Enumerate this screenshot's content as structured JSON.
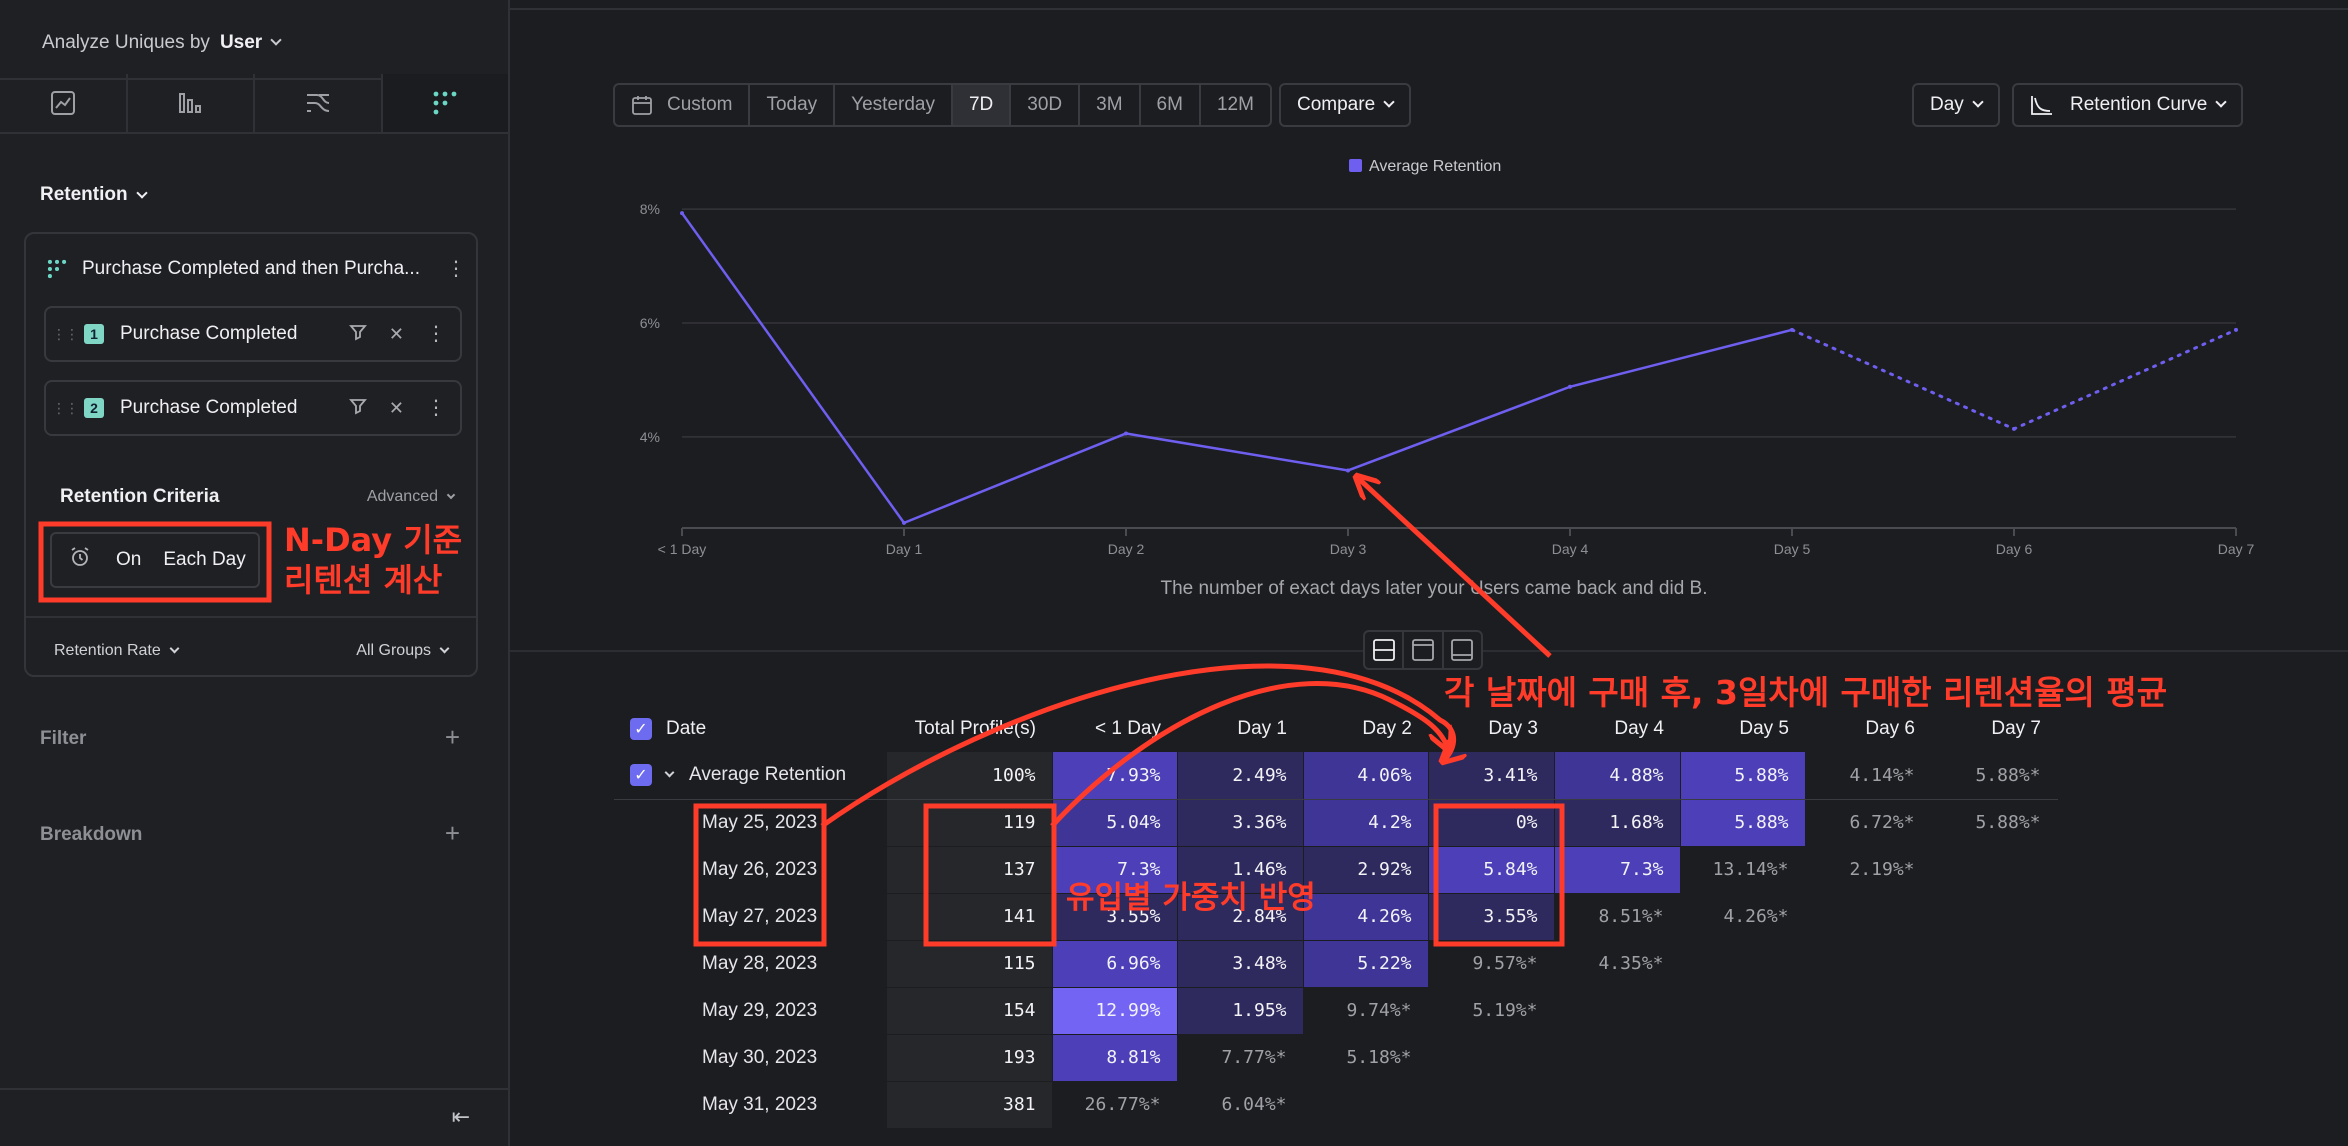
{
  "sidebar": {
    "analyze_label": "Analyze Uniques by",
    "analyze_value": "User",
    "tabs": [
      {
        "name": "insights-tab",
        "icon": "line-chart-icon"
      },
      {
        "name": "funnels-tab",
        "icon": "bar-chart-icon"
      },
      {
        "name": "flows-tab",
        "icon": "flows-icon"
      },
      {
        "name": "retention-tab",
        "icon": "retention-grid-icon"
      }
    ],
    "section_title": "Retention",
    "metric_title": "Purchase Completed and then Purcha...",
    "steps": [
      {
        "num": "1",
        "label": "Purchase Completed"
      },
      {
        "num": "2",
        "label": "Purchase Completed"
      }
    ],
    "criteria_title": "Retention Criteria",
    "criteria_advanced": "Advanced",
    "criteria_on": "On",
    "criteria_each": "Each Day",
    "rate_label": "Retention Rate",
    "groups_label": "All Groups",
    "filter_label": "Filter",
    "breakdown_label": "Breakdown"
  },
  "toolbar": {
    "custom_label": "Custom",
    "ranges": [
      "Today",
      "Yesterday",
      "7D",
      "30D",
      "3M",
      "6M",
      "12M"
    ],
    "active_range": "7D",
    "compare_label": "Compare",
    "unit_label": "Day",
    "chart_type_label": "Retention Curve"
  },
  "chart_data": {
    "type": "line",
    "legend": [
      "Average Retention"
    ],
    "legend_placement": "top-center",
    "categories": [
      "< 1 Day",
      "Day 1",
      "Day 2",
      "Day 3",
      "Day 4",
      "Day 5",
      "Day 6",
      "Day 7"
    ],
    "series": [
      {
        "name": "Average Retention",
        "values": [
          7.93,
          2.49,
          4.06,
          3.41,
          4.88,
          5.88,
          4.14,
          5.88
        ],
        "incomplete_from_index": 5
      }
    ],
    "y_ticks": [
      "8%",
      "6%",
      "4%"
    ],
    "y_tick_values": [
      8,
      6,
      4
    ],
    "ylim": [
      2.4,
      8.3
    ],
    "grid": true,
    "xlabel": "The number of exact days later your Users came back and did B.",
    "color": "#6f5ff0"
  },
  "table": {
    "headers": [
      "Date",
      "Total Profile(s)",
      "< 1 Day",
      "Day 1",
      "Day 2",
      "Day 3",
      "Day 4",
      "Day 5",
      "Day 6",
      "Day 7"
    ],
    "average": {
      "label": "Average Retention",
      "total": "100%",
      "cells": [
        "7.93%",
        "2.49%",
        "4.06%",
        "3.41%",
        "4.88%",
        "5.88%",
        "4.14%*",
        "5.88%*"
      ]
    },
    "rows": [
      {
        "date": "May 25, 2023",
        "total": "119",
        "cells": [
          "5.04%",
          "3.36%",
          "4.2%",
          "0%",
          "1.68%",
          "5.88%",
          "6.72%*",
          "5.88%*"
        ]
      },
      {
        "date": "May 26, 2023",
        "total": "137",
        "cells": [
          "7.3%",
          "1.46%",
          "2.92%",
          "5.84%",
          "7.3%",
          "13.14%*",
          "2.19%*",
          ""
        ]
      },
      {
        "date": "May 27, 2023",
        "total": "141",
        "cells": [
          "3.55%",
          "2.84%",
          "4.26%",
          "3.55%",
          "8.51%*",
          "4.26%*",
          "",
          ""
        ]
      },
      {
        "date": "May 28, 2023",
        "total": "115",
        "cells": [
          "6.96%",
          "3.48%",
          "5.22%",
          "9.57%*",
          "4.35%*",
          "",
          "",
          ""
        ]
      },
      {
        "date": "May 29, 2023",
        "total": "154",
        "cells": [
          "12.99%",
          "1.95%",
          "9.74%*",
          "5.19%*",
          "",
          "",
          "",
          ""
        ]
      },
      {
        "date": "May 30, 2023",
        "total": "193",
        "cells": [
          "8.81%",
          "7.77%*",
          "5.18%*",
          "",
          "",
          "",
          "",
          ""
        ]
      },
      {
        "date": "May 31, 2023",
        "total": "381",
        "cells": [
          "26.77%*",
          "6.04%*",
          "",
          "",
          "",
          "",
          "",
          ""
        ]
      }
    ],
    "heat_colors": {
      "low": "#2f2a5e",
      "mid": "#3f3596",
      "high": "#4d3fb8",
      "peak": "#7464f4"
    }
  },
  "annotations": {
    "nday_line1": "N-Day 기준",
    "nday_line2": "리텐션 계산",
    "avg_note": "각 날짜에 구매 후, 3일차에 구매한 리텐션율의 평균",
    "weight_note": "유입별 가중치 반영",
    "color": "#ff3b2a"
  }
}
